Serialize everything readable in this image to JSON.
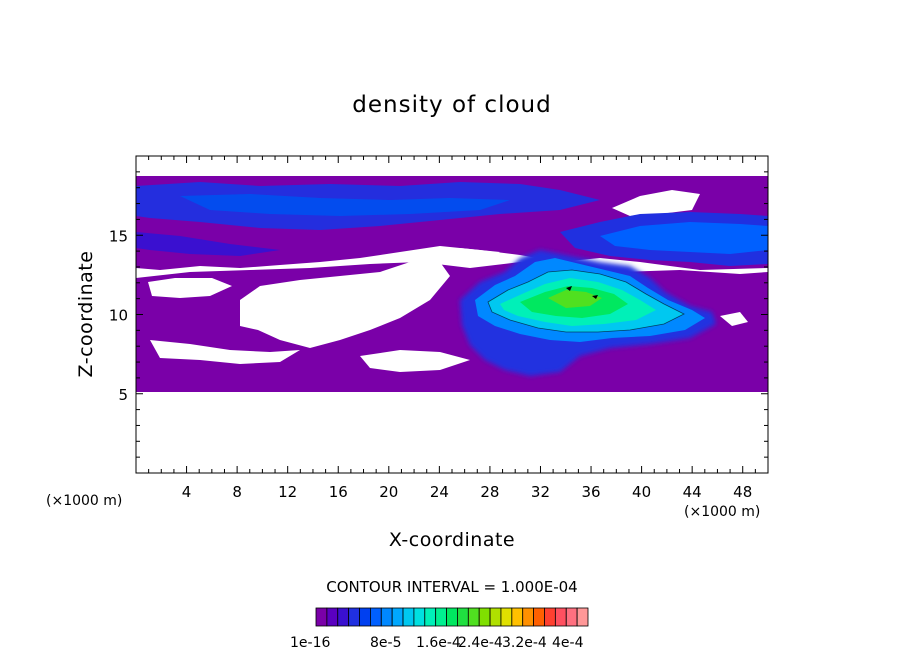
{
  "chart_data": {
    "type": "heatmap",
    "title": "density of cloud",
    "xlabel": "X-coordinate",
    "ylabel": "Z-coordinate",
    "x_unit": "(×1000 m)",
    "z_unit": "(×1000 m)",
    "xlim": [
      0,
      50
    ],
    "ylim": [
      0,
      20
    ],
    "x_ticks": [
      4,
      8,
      12,
      16,
      20,
      24,
      28,
      32,
      36,
      40,
      44,
      48
    ],
    "y_ticks": [
      5,
      10,
      15
    ],
    "x_tick_labels": [
      "4",
      "8",
      "12",
      "16",
      "20",
      "24",
      "28",
      "32",
      "36",
      "40",
      "44",
      "48"
    ],
    "y_tick_labels": [
      "5",
      "10",
      "15"
    ],
    "contour_interval_text": "CONTOUR INTERVAL = 1.000E-04",
    "colorbar": {
      "labels": [
        "1e-16",
        "8e-5",
        "1.6e-4",
        "2.4e-4",
        "3.2e-4",
        "4e-4"
      ],
      "colors": [
        "#7a00a8",
        "#5a00c0",
        "#3a10d0",
        "#2030e0",
        "#0040f0",
        "#0060ff",
        "#0088ff",
        "#00a8ff",
        "#00c8f0",
        "#00e0e0",
        "#00f0b8",
        "#00f090",
        "#00e860",
        "#20e040",
        "#50e020",
        "#80e000",
        "#b0e000",
        "#e0e000",
        "#ffc000",
        "#ff9000",
        "#ff6000",
        "#ff4030",
        "#ff5060",
        "#ff7080",
        "#ff9898"
      ]
    },
    "regions": [
      {
        "name": "upper-cloud-layer",
        "level": 0,
        "z_range": [
          13.2,
          18.7
        ],
        "x_range": [
          0,
          50
        ]
      },
      {
        "name": "upper-layer-blue-bands",
        "level": 4,
        "z_range": [
          14.3,
          18.0
        ],
        "x_range": [
          0,
          50
        ]
      },
      {
        "name": "mid-cloud-layer",
        "level": 0,
        "z_range": [
          5.0,
          13.0
        ],
        "x_range": [
          0,
          50
        ]
      },
      {
        "name": "convective-core",
        "level": 11,
        "z_range": [
          8.5,
          13.7
        ],
        "x_range": [
          26.5,
          45.5
        ]
      },
      {
        "name": "core-maximum",
        "level": 13,
        "z_range": [
          10.5,
          12.0
        ],
        "x_range": [
          33,
          37
        ]
      }
    ]
  }
}
